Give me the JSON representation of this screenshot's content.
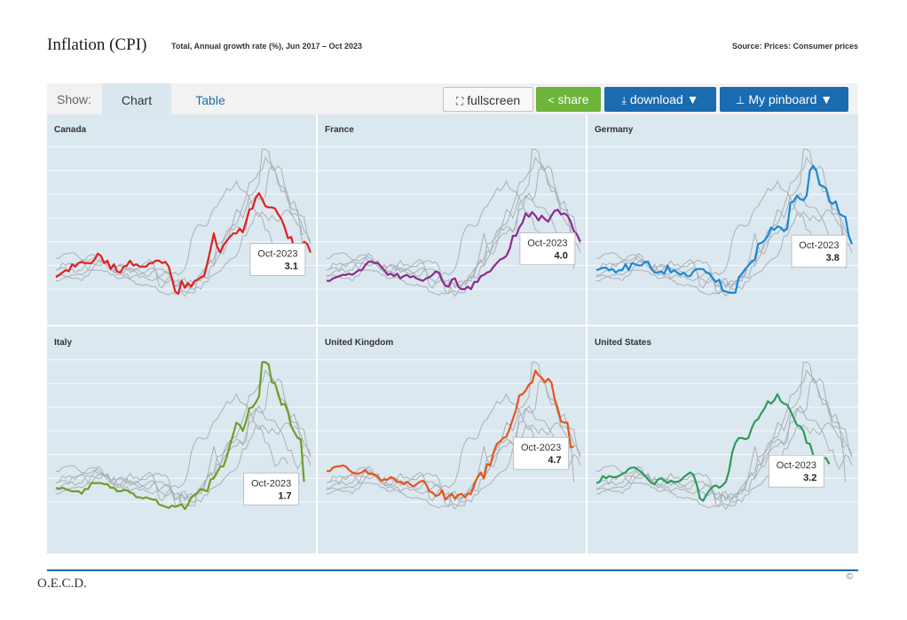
{
  "header": {
    "title": "Inflation (CPI)",
    "subtitle": "Total, Annual growth rate (%), Jun 2017 – Oct 2023",
    "source": "Source: Prices: Consumer prices"
  },
  "toolbar": {
    "show_label": "Show:",
    "tabs": [
      {
        "label": "Chart",
        "active": true
      },
      {
        "label": "Table",
        "active": false
      }
    ],
    "fullscreen_label": "fullscreen",
    "share_label": "share",
    "download_label": "download ▼",
    "pinboard_label": "My pinboard ▼"
  },
  "colors": {
    "share": "#6eb33a",
    "primary": "#1a6bb0",
    "panel_bg": "#dce8f0",
    "grey_series": "#a9b0b5"
  },
  "copyright": "©",
  "footer": "O.E.C.D.",
  "chart_data": [
    {
      "type": "line",
      "panel": "Canada",
      "color": "#e02020",
      "x_start": "2017-06",
      "x_end": "2023-10",
      "callout": {
        "label": "Oct-2023",
        "value": "3.1"
      },
      "values": [
        1.0,
        1.2,
        1.4,
        1.6,
        1.5,
        2.1,
        1.9,
        2.2,
        2.3,
        2.2,
        2.2,
        2.2,
        2.5,
        3.0,
        2.8,
        2.2,
        2.4,
        1.7,
        2.1,
        1.5,
        1.4,
        1.9,
        2.0,
        2.4,
        2.0,
        2.1,
        1.9,
        1.9,
        1.9,
        2.2,
        2.2,
        2.4,
        2.4,
        2.2,
        2.3,
        1.9,
        0.9,
        -0.2,
        -0.4,
        0.7,
        0.1,
        0.5,
        0.2,
        0.7,
        0.8,
        1.0,
        1.1,
        2.2,
        3.4,
        4.7,
        3.6,
        3.1,
        3.7,
        4.1,
        4.4,
        4.7,
        4.7,
        5.1,
        4.8,
        5.7,
        6.7,
        6.8,
        7.7,
        8.1,
        7.6,
        7.0,
        6.9,
        6.9,
        6.8,
        6.3,
        5.9,
        5.2,
        4.3,
        4.4,
        3.4,
        2.8,
        3.3,
        4.0,
        3.8,
        3.1
      ]
    },
    {
      "type": "line",
      "panel": "France",
      "color": "#8e2a8e",
      "x_start": "2017-06",
      "x_end": "2023-10",
      "callout": {
        "label": "Oct-2023",
        "value": "4.0"
      },
      "values": [
        0.7,
        0.7,
        0.9,
        1.0,
        1.1,
        1.2,
        1.2,
        1.3,
        1.2,
        1.4,
        1.6,
        1.6,
        2.0,
        2.3,
        2.3,
        2.2,
        2.2,
        1.9,
        1.6,
        1.2,
        1.3,
        1.1,
        1.3,
        0.9,
        1.1,
        1.2,
        1.0,
        1.1,
        0.9,
        0.8,
        0.7,
        0.9,
        1.0,
        1.2,
        1.5,
        1.4,
        0.7,
        0.3,
        0.2,
        0.8,
        0.9,
        0.2,
        0.0,
        0.0,
        0.2,
        0.0,
        0.6,
        0.6,
        1.1,
        1.2,
        1.4,
        1.5,
        1.9,
        2.2,
        2.5,
        2.6,
        2.8,
        3.4,
        4.5,
        4.5,
        5.2,
        5.6,
        6.4,
        6.1,
        6.5,
        6.2,
        5.8,
        6.2,
        5.9,
        5.7,
        6.2,
        6.6,
        6.7,
        6.3,
        6.4,
        6.2,
        5.7,
        4.9,
        4.6,
        4.0
      ]
    },
    {
      "type": "line",
      "panel": "Germany",
      "color": "#1b88d2",
      "x_start": "2017-06",
      "x_end": "2023-10",
      "callout": {
        "label": "Oct-2023",
        "value": "3.8"
      },
      "values": [
        1.6,
        1.7,
        1.8,
        1.8,
        1.6,
        1.7,
        1.4,
        1.6,
        1.6,
        2.1,
        1.6,
        2.2,
        2.1,
        2.0,
        2.0,
        2.3,
        2.3,
        1.7,
        1.4,
        1.4,
        1.5,
        1.3,
        2.0,
        1.4,
        1.6,
        1.4,
        1.2,
        1.4,
        1.1,
        1.1,
        1.5,
        1.7,
        1.7,
        1.7,
        1.4,
        1.3,
        0.9,
        0.6,
        0.8,
        -0.1,
        -0.2,
        -0.3,
        -0.3,
        -0.3,
        1.0,
        1.3,
        1.7,
        2.0,
        2.3,
        2.5,
        3.8,
        3.9,
        4.1,
        4.5,
        5.2,
        5.0,
        5.3,
        5.2,
        4.9,
        5.1,
        7.3,
        7.4,
        7.9,
        7.6,
        7.5,
        7.9,
        10.0,
        10.4,
        10.0,
        8.8,
        8.7,
        8.5,
        7.4,
        7.2,
        7.4,
        6.4,
        6.2,
        6.1,
        4.5,
        3.8
      ]
    },
    {
      "type": "line",
      "panel": "Italy",
      "color": "#6f9e26",
      "x_start": "2017-06",
      "x_end": "2023-10",
      "callout": {
        "label": "Oct-2023",
        "value": "1.7"
      },
      "values": [
        1.2,
        1.1,
        1.2,
        1.1,
        1.0,
        0.9,
        0.9,
        0.9,
        0.7,
        1.1,
        1.1,
        1.6,
        1.6,
        1.6,
        1.6,
        1.5,
        1.5,
        1.2,
        1.2,
        0.9,
        0.9,
        1.0,
        1.0,
        0.8,
        0.7,
        0.4,
        0.4,
        0.3,
        0.4,
        0.3,
        0.2,
        0.2,
        -0.2,
        -0.3,
        -0.4,
        -0.5,
        -0.3,
        -0.4,
        -0.3,
        -0.2,
        -0.6,
        -0.2,
        0.4,
        0.6,
        0.8,
        1.1,
        1.0,
        0.9,
        1.9,
        2.0,
        2.5,
        3.0,
        3.0,
        3.8,
        4.8,
        5.7,
        6.7,
        6.5,
        6.0,
        6.8,
        7.9,
        8.0,
        8.4,
        8.9,
        11.8,
        11.8,
        11.6,
        10.1,
        10.0,
        9.1,
        8.2,
        8.3,
        7.6,
        6.4,
        5.9,
        5.4,
        5.3,
        1.7
      ]
    },
    {
      "type": "line",
      "panel": "United Kingdom",
      "color": "#e8541c",
      "x_start": "2017-06",
      "x_end": "2023-10",
      "callout": {
        "label": "Oct-2023",
        "value": "4.7"
      },
      "values": [
        2.6,
        2.6,
        2.9,
        3.0,
        3.0,
        3.1,
        3.0,
        2.7,
        2.5,
        2.4,
        2.4,
        2.5,
        2.7,
        2.4,
        2.4,
        2.3,
        2.1,
        1.8,
        1.9,
        1.9,
        2.1,
        2.0,
        1.7,
        1.7,
        1.5,
        1.7,
        1.5,
        1.3,
        1.5,
        1.7,
        1.8,
        1.5,
        0.9,
        0.8,
        0.5,
        0.6,
        1.0,
        0.2,
        0.5,
        0.7,
        0.3,
        0.6,
        0.7,
        0.4,
        0.7,
        0.7,
        1.5,
        2.1,
        2.5,
        2.0,
        3.2,
        3.1,
        4.2,
        4.9,
        5.1,
        5.4,
        5.5,
        6.2,
        7.0,
        7.8,
        9.0,
        9.1,
        9.4,
        9.9,
        10.1,
        11.1,
        10.7,
        10.5,
        10.1,
        10.4,
        10.1,
        8.7,
        7.9,
        6.8,
        6.7,
        6.7,
        4.6,
        4.7
      ]
    },
    {
      "type": "line",
      "panel": "United States",
      "color": "#2f9a5c",
      "x_start": "2017-06",
      "x_end": "2023-10",
      "callout": {
        "label": "Oct-2023",
        "value": "3.2"
      },
      "values": [
        1.6,
        1.7,
        2.2,
        2.0,
        2.2,
        2.1,
        2.1,
        2.2,
        2.4,
        2.5,
        2.8,
        2.9,
        2.9,
        2.7,
        2.5,
        2.2,
        1.9,
        1.6,
        1.5,
        1.9,
        2.0,
        1.8,
        1.6,
        1.8,
        1.7,
        1.7,
        1.8,
        2.1,
        2.3,
        2.5,
        2.3,
        1.5,
        0.3,
        0.1,
        0.6,
        1.0,
        1.3,
        1.4,
        1.2,
        1.4,
        1.7,
        2.6,
        4.2,
        5.0,
        5.4,
        5.4,
        5.3,
        5.4,
        6.2,
        6.8,
        7.0,
        7.5,
        7.9,
        8.5,
        8.3,
        8.6,
        9.1,
        8.5,
        8.3,
        8.2,
        7.7,
        7.1,
        6.5,
        6.4,
        6.0,
        5.0,
        4.9,
        4.0,
        3.0,
        3.2,
        3.7,
        3.7,
        3.2
      ]
    }
  ]
}
